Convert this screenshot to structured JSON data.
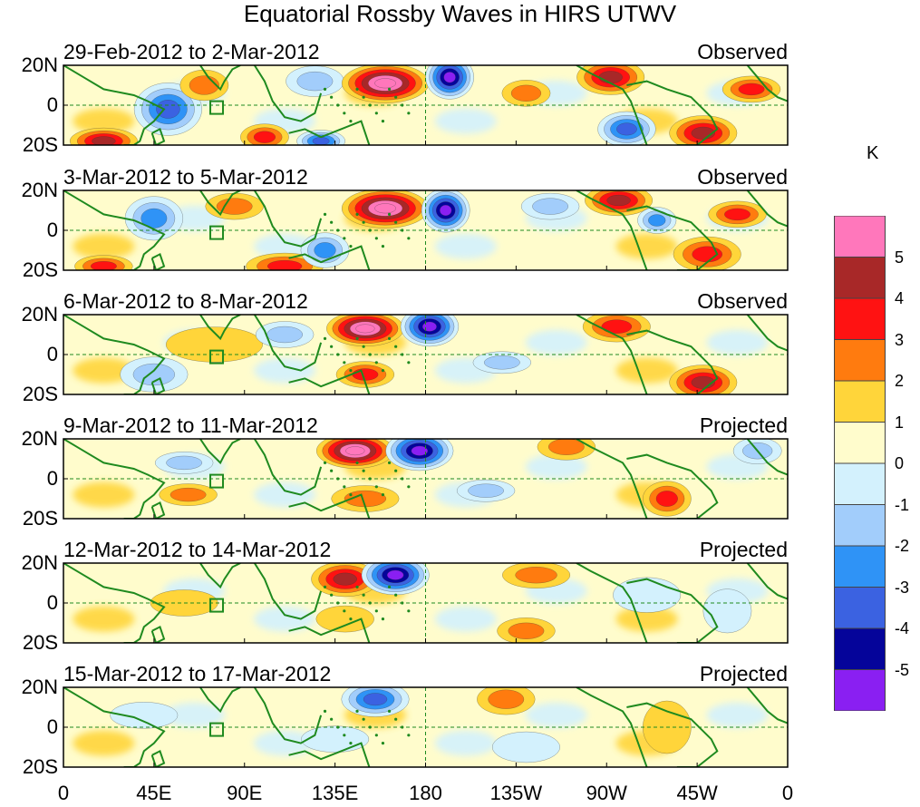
{
  "title": "Equatorial Rossby Waves in HIRS UTWV",
  "panels": [
    {
      "date_range": "29-Feb-2012 to 2-Mar-2012",
      "kind": "Observed",
      "anomalies": [
        {
          "lon": 20,
          "lat": -18,
          "lon_r": 14,
          "lat_r": 6,
          "level": 4
        },
        {
          "lon": 52,
          "lat": -2,
          "lon_r": 14,
          "lat_r": 12,
          "level": -4
        },
        {
          "lon": 70,
          "lat": 10,
          "lon_r": 10,
          "lat_r": 7,
          "level": 2
        },
        {
          "lon": 100,
          "lat": -16,
          "lon_r": 10,
          "lat_r": 6,
          "level": 3
        },
        {
          "lon": 128,
          "lat": -18,
          "lon_r": 10,
          "lat_r": 5,
          "level": -4
        },
        {
          "lon": 125,
          "lat": 12,
          "lon_r": 12,
          "lat_r": 7,
          "level": -2
        },
        {
          "lon": 160,
          "lat": 11,
          "lon_r": 18,
          "lat_r": 9,
          "level": 5
        },
        {
          "lon": 192,
          "lat": 14,
          "lon_r": 10,
          "lat_r": 10,
          "level": -5
        },
        {
          "lon": 230,
          "lat": 6,
          "lon_r": 10,
          "lat_r": 6,
          "level": 2
        },
        {
          "lon": 272,
          "lat": 14,
          "lon_r": 14,
          "lat_r": 8,
          "level": 4
        },
        {
          "lon": 280,
          "lat": -12,
          "lon_r": 12,
          "lat_r": 8,
          "level": -4
        },
        {
          "lon": 318,
          "lat": -14,
          "lon_r": 14,
          "lat_r": 8,
          "level": 4
        },
        {
          "lon": 342,
          "lat": 8,
          "lon_r": 12,
          "lat_r": 6,
          "level": 3
        }
      ]
    },
    {
      "date_range": "3-Mar-2012 to 5-Mar-2012",
      "kind": "Observed",
      "anomalies": [
        {
          "lon": 20,
          "lat": -18,
          "lon_r": 12,
          "lat_r": 5,
          "level": 3
        },
        {
          "lon": 45,
          "lat": 6,
          "lon_r": 12,
          "lat_r": 10,
          "level": -3
        },
        {
          "lon": 85,
          "lat": 12,
          "lon_r": 12,
          "lat_r": 6,
          "level": 2
        },
        {
          "lon": 110,
          "lat": -18,
          "lon_r": 16,
          "lat_r": 6,
          "level": 3
        },
        {
          "lon": 130,
          "lat": -10,
          "lon_r": 10,
          "lat_r": 8,
          "level": -3
        },
        {
          "lon": 160,
          "lat": 11,
          "lon_r": 18,
          "lat_r": 9,
          "level": 5
        },
        {
          "lon": 190,
          "lat": 10,
          "lon_r": 10,
          "lat_r": 10,
          "level": -5
        },
        {
          "lon": 242,
          "lat": 12,
          "lon_r": 12,
          "lat_r": 6,
          "level": -2
        },
        {
          "lon": 276,
          "lat": 15,
          "lon_r": 14,
          "lat_r": 7,
          "level": 4
        },
        {
          "lon": 295,
          "lat": 5,
          "lon_r": 8,
          "lat_r": 6,
          "level": -3
        },
        {
          "lon": 320,
          "lat": -12,
          "lon_r": 14,
          "lat_r": 8,
          "level": 3
        },
        {
          "lon": 335,
          "lat": 8,
          "lon_r": 12,
          "lat_r": 6,
          "level": 3
        }
      ]
    },
    {
      "date_range": "6-Mar-2012 to 8-Mar-2012",
      "kind": "Observed",
      "anomalies": [
        {
          "lon": 45,
          "lat": -10,
          "lon_r": 14,
          "lat_r": 8,
          "level": -2
        },
        {
          "lon": 75,
          "lat": 5,
          "lon_r": 20,
          "lat_r": 8,
          "level": 1
        },
        {
          "lon": 110,
          "lat": 10,
          "lon_r": 12,
          "lat_r": 6,
          "level": -2
        },
        {
          "lon": 150,
          "lat": 13,
          "lon_r": 16,
          "lat_r": 8,
          "level": 5
        },
        {
          "lon": 182,
          "lat": 14,
          "lon_r": 12,
          "lat_r": 9,
          "level": -5
        },
        {
          "lon": 150,
          "lat": -10,
          "lon_r": 12,
          "lat_r": 6,
          "level": 3
        },
        {
          "lon": 218,
          "lat": -4,
          "lon_r": 12,
          "lat_r": 5,
          "level": -2
        },
        {
          "lon": 275,
          "lat": 14,
          "lon_r": 14,
          "lat_r": 7,
          "level": 3
        },
        {
          "lon": 318,
          "lat": -14,
          "lon_r": 14,
          "lat_r": 8,
          "level": 4
        }
      ]
    },
    {
      "date_range": "9-Mar-2012 to 11-Mar-2012",
      "kind": "Projected",
      "anomalies": [
        {
          "lon": 60,
          "lat": 8,
          "lon_r": 12,
          "lat_r": 5,
          "level": -2
        },
        {
          "lon": 62,
          "lat": -8,
          "lon_r": 12,
          "lat_r": 5,
          "level": 2
        },
        {
          "lon": 145,
          "lat": 14,
          "lon_r": 16,
          "lat_r": 8,
          "level": 5
        },
        {
          "lon": 177,
          "lat": 14,
          "lon_r": 14,
          "lat_r": 9,
          "level": -5
        },
        {
          "lon": 150,
          "lat": -10,
          "lon_r": 14,
          "lat_r": 6,
          "level": 2
        },
        {
          "lon": 210,
          "lat": -6,
          "lon_r": 12,
          "lat_r": 5,
          "level": -2
        },
        {
          "lon": 250,
          "lat": 16,
          "lon_r": 12,
          "lat_r": 6,
          "level": 2
        },
        {
          "lon": 300,
          "lat": -10,
          "lon_r": 10,
          "lat_r": 8,
          "level": 3
        },
        {
          "lon": 345,
          "lat": 14,
          "lon_r": 10,
          "lat_r": 6,
          "level": -2
        }
      ]
    },
    {
      "date_range": "12-Mar-2012 to 14-Mar-2012",
      "kind": "Projected",
      "anomalies": [
        {
          "lon": 60,
          "lat": 0,
          "lon_r": 14,
          "lat_r": 6,
          "level": 1
        },
        {
          "lon": 140,
          "lat": 12,
          "lon_r": 14,
          "lat_r": 8,
          "level": 4
        },
        {
          "lon": 165,
          "lat": 14,
          "lon_r": 14,
          "lat_r": 9,
          "level": -5
        },
        {
          "lon": 140,
          "lat": -8,
          "lon_r": 12,
          "lat_r": 6,
          "level": 1
        },
        {
          "lon": 235,
          "lat": 14,
          "lon_r": 14,
          "lat_r": 6,
          "level": 2
        },
        {
          "lon": 230,
          "lat": -14,
          "lon_r": 12,
          "lat_r": 6,
          "level": 2
        },
        {
          "lon": 290,
          "lat": 4,
          "lon_r": 14,
          "lat_r": 8,
          "level": -1
        },
        {
          "lon": 330,
          "lat": -4,
          "lon_r": 10,
          "lat_r": 10,
          "level": -1
        }
      ]
    },
    {
      "date_range": "15-Mar-2012 to 17-Mar-2012",
      "kind": "Projected",
      "anomalies": [
        {
          "lon": 40,
          "lat": 6,
          "lon_r": 14,
          "lat_r": 6,
          "level": -1
        },
        {
          "lon": 155,
          "lat": 14,
          "lon_r": 14,
          "lat_r": 8,
          "level": -4
        },
        {
          "lon": 135,
          "lat": -6,
          "lon_r": 14,
          "lat_r": 6,
          "level": -1
        },
        {
          "lon": 220,
          "lat": 14,
          "lon_r": 12,
          "lat_r": 7,
          "level": 2
        },
        {
          "lon": 230,
          "lat": -10,
          "lon_r": 14,
          "lat_r": 7,
          "level": -1
        },
        {
          "lon": 300,
          "lat": 0,
          "lon_r": 10,
          "lat_r": 12,
          "level": 1
        }
      ]
    }
  ],
  "axes": {
    "lat_labels": [
      "20N",
      "0",
      "20S"
    ],
    "lon_labels": [
      "0",
      "45E",
      "90E",
      "135E",
      "180",
      "135W",
      "90W",
      "45W",
      "0"
    ],
    "lon_values": [
      0,
      45,
      90,
      135,
      180,
      225,
      270,
      315,
      360
    ]
  },
  "colorbar": {
    "unit": "K",
    "levels": [
      {
        "label": "5",
        "color": "#ff77bb"
      },
      {
        "label": "4",
        "color": "#a82828"
      },
      {
        "label": "3",
        "color": "#ff1212"
      },
      {
        "label": "2",
        "color": "#ff7b0f"
      },
      {
        "label": "1",
        "color": "#ffd53a"
      },
      {
        "label": "0",
        "color": "#fffccc"
      },
      {
        "label": "-1",
        "color": "#d3f1fd"
      },
      {
        "label": "-2",
        "color": "#a2cdfb"
      },
      {
        "label": "-3",
        "color": "#2f93f6"
      },
      {
        "label": "-4",
        "color": "#3b62e1"
      },
      {
        "label": "-5",
        "color": "#05049a"
      },
      {
        "label": "",
        "color": "#8a1ff2"
      }
    ]
  },
  "chart_data": {
    "type": "heatmap",
    "title": "Equatorial Rossby Waves in HIRS UTWV",
    "variable_units": "K",
    "x_range": [
      0,
      360
    ],
    "y_range": [
      -20,
      20
    ],
    "contour_levels": [
      -5,
      -4,
      -3,
      -2,
      -1,
      0,
      1,
      2,
      3,
      4,
      5
    ]
  }
}
